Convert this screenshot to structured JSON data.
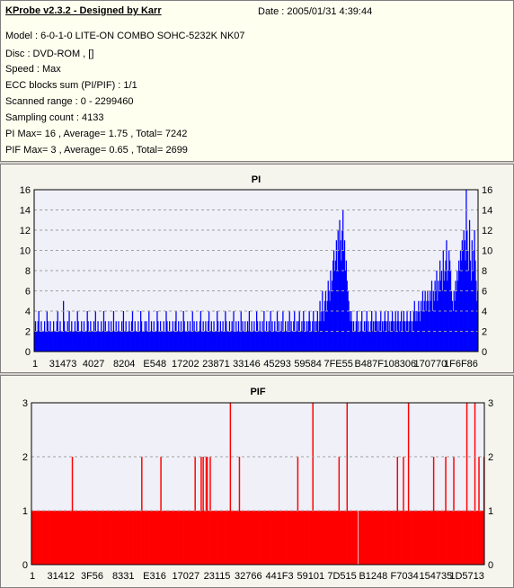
{
  "header": {
    "title": "KProbe v2.3.2 - Designed by Karr",
    "date": "Date : 2005/01/31 4:39:44"
  },
  "info_lines": [
    "Model : 6-0-1-0 LITE-ON COMBO SOHC-5232K NK07",
    "Disc : DVD-ROM ,  []",
    "Speed : Max",
    "ECC blocks sum (PI/PIF) : 1/1",
    "Scanned range : 0 - 2299460",
    "Sampling count : 4133",
    "PI Max= 16 , Average= 1.75 , Total= 7242",
    "PIF Max= 3 , Average= 0.65 , Total= 2699"
  ],
  "colors": {
    "pi": "#0000ff",
    "pif": "#ff0000",
    "grid": "#a0a0a0",
    "plot_bg": "#f0f0f8"
  },
  "chart_data": [
    {
      "type": "bar",
      "title": "PI",
      "ylim": [
        0,
        16
      ],
      "yticks": [
        0,
        2,
        4,
        6,
        8,
        10,
        12,
        14,
        16
      ],
      "xtick_labels": [
        "1",
        "31473",
        "4027",
        "8204",
        "E548",
        "17202",
        "23871",
        "33146",
        "45293",
        "59584",
        "7FE55",
        "B487F",
        "108306",
        "170770",
        "1F6F86"
      ],
      "grid": true,
      "series": [
        {
          "values": [
            2,
            3,
            2,
            2,
            3,
            4,
            2,
            2,
            3,
            2,
            2,
            2,
            3,
            2,
            2,
            4,
            3,
            2,
            2,
            3,
            2,
            2,
            2,
            3,
            2,
            2,
            2,
            3,
            4,
            2,
            2,
            3,
            2,
            2,
            2,
            5,
            3,
            2,
            2,
            2,
            3,
            2,
            4,
            2,
            2,
            3,
            2,
            2,
            2,
            3,
            2,
            2,
            4,
            3,
            2,
            2,
            2,
            3,
            2,
            2,
            3,
            2,
            2,
            2,
            4,
            3,
            2,
            2,
            3,
            2,
            2,
            2,
            3,
            2,
            4,
            2,
            2,
            3,
            2,
            2,
            2,
            3,
            2,
            2,
            4,
            2,
            3,
            2,
            2,
            2,
            3,
            2,
            2,
            3,
            2,
            2,
            4,
            2,
            2,
            3,
            2,
            2,
            3,
            2,
            2,
            2,
            3,
            2,
            4,
            2,
            2,
            3,
            2,
            2,
            2,
            3,
            2,
            2,
            3,
            4,
            2,
            2,
            3,
            2,
            2,
            2,
            3,
            2,
            2,
            4,
            3,
            2,
            2,
            2,
            3,
            2,
            3,
            2,
            2,
            4,
            2,
            2,
            3,
            2,
            2,
            3,
            2,
            2,
            2,
            4,
            3,
            2,
            2,
            3,
            2,
            2,
            2,
            3,
            2,
            2,
            4,
            3,
            2,
            2,
            3,
            2,
            2,
            2,
            3,
            2,
            2,
            3,
            4,
            2,
            2,
            3,
            2,
            2,
            3,
            2,
            2,
            4,
            3,
            2,
            2,
            2,
            3,
            2,
            2,
            3,
            2,
            2,
            4,
            2,
            3,
            2,
            2,
            3,
            2,
            2,
            2,
            3,
            4,
            2,
            2,
            3,
            2,
            2,
            3,
            2,
            2,
            3,
            4,
            2,
            2,
            3,
            2,
            2,
            3,
            2,
            2,
            2,
            4,
            3,
            2,
            2,
            3,
            2,
            2,
            3,
            2,
            2,
            4,
            3,
            2,
            2,
            2,
            3,
            2,
            2,
            3,
            2,
            4,
            2,
            2,
            3,
            2,
            2,
            3,
            2,
            2,
            4,
            2,
            3,
            2,
            2,
            3,
            2,
            2,
            3,
            2,
            4,
            2,
            2,
            3,
            2,
            2,
            3,
            2,
            2,
            4,
            3,
            2,
            2,
            3,
            2,
            2,
            3,
            2,
            4,
            2,
            2,
            3,
            2,
            2,
            3,
            2,
            4,
            2,
            3,
            2,
            2,
            3,
            2,
            2,
            4,
            2,
            3,
            2,
            2,
            3,
            2,
            4,
            2,
            2,
            3,
            2,
            2,
            3,
            2,
            4,
            2,
            3,
            2,
            2,
            3,
            4,
            2,
            2,
            3,
            2,
            3,
            4,
            2,
            2,
            3,
            2,
            4,
            3,
            2,
            2,
            3,
            2,
            3,
            4,
            3,
            2,
            2,
            3,
            4,
            2,
            3,
            2,
            3,
            4,
            2,
            3,
            5,
            3,
            4,
            6,
            4,
            3,
            5,
            6,
            4,
            5,
            7,
            6,
            5,
            8,
            6,
            7,
            9,
            10,
            8,
            9,
            11,
            8,
            12,
            10,
            13,
            11,
            9,
            12,
            14,
            10,
            11,
            8,
            9,
            7,
            6,
            5,
            4,
            3,
            4,
            3,
            2,
            3,
            2,
            2,
            3,
            4,
            2,
            3,
            2,
            2,
            3,
            4,
            2,
            2,
            3,
            2,
            3,
            4,
            2,
            3,
            2,
            2,
            3,
            4,
            2,
            3,
            2,
            3,
            4,
            3,
            2,
            3,
            2,
            3,
            4,
            2,
            3,
            2,
            3,
            4,
            3,
            2,
            3,
            4,
            2,
            3,
            2,
            3,
            4,
            3,
            2,
            3,
            4,
            2,
            3,
            4,
            3,
            2,
            3,
            4,
            2,
            3,
            4,
            3,
            2,
            3,
            4,
            3,
            2,
            3,
            4,
            3,
            2,
            3,
            4,
            5,
            3,
            4,
            3,
            4,
            5,
            4,
            3,
            5,
            4,
            6,
            4,
            5,
            6,
            4,
            5,
            6,
            5,
            4,
            6,
            5,
            7,
            4,
            6,
            5,
            7,
            6,
            8,
            5,
            7,
            6,
            9,
            7,
            8,
            6,
            10,
            7,
            8,
            9,
            11,
            7,
            8,
            10,
            9,
            8,
            6,
            5,
            4,
            6,
            5,
            7,
            6,
            8,
            7,
            9,
            8,
            10,
            9,
            11,
            10,
            12,
            11,
            9,
            16,
            12,
            10,
            8,
            13,
            9,
            7,
            11,
            8,
            10,
            12,
            9,
            7,
            5,
            6
          ]
        }
      ]
    },
    {
      "type": "bar",
      "title": "PIF",
      "ylim": [
        0,
        3
      ],
      "yticks": [
        0,
        1,
        2,
        3
      ],
      "xtick_labels": [
        "1",
        "31412",
        "3F56",
        "8331",
        "E316",
        "17027",
        "23115",
        "32766",
        "441F3",
        "59101",
        "7D515",
        "B1248",
        "F7034",
        "154735",
        "1D5713"
      ],
      "grid": true,
      "series": [
        {
          "values": [
            1,
            1,
            1,
            1,
            1,
            1,
            1,
            1,
            1,
            1,
            1,
            1,
            1,
            1,
            1,
            1,
            1,
            1,
            1,
            1,
            1,
            1,
            1,
            1,
            1,
            1,
            1,
            1,
            1,
            1,
            1,
            1,
            1,
            1,
            1,
            1,
            1,
            1,
            1,
            1,
            2,
            1,
            1,
            1,
            1,
            1,
            1,
            1,
            1,
            1,
            1,
            1,
            1,
            1,
            1,
            1,
            1,
            1,
            1,
            1,
            1,
            1,
            1,
            1,
            1,
            1,
            1,
            1,
            1,
            1,
            1,
            1,
            1,
            1,
            1,
            1,
            1,
            1,
            1,
            1,
            1,
            1,
            1,
            1,
            1,
            1,
            1,
            1,
            1,
            1,
            1,
            1,
            1,
            1,
            1,
            1,
            1,
            1,
            1,
            1,
            1,
            1,
            1,
            1,
            1,
            1,
            1,
            1,
            1,
            2,
            1,
            1,
            1,
            1,
            1,
            1,
            1,
            1,
            1,
            1,
            1,
            1,
            1,
            1,
            1,
            1,
            1,
            1,
            2,
            1,
            1,
            1,
            1,
            1,
            1,
            1,
            1,
            1,
            1,
            1,
            1,
            1,
            1,
            1,
            1,
            1,
            1,
            1,
            1,
            1,
            1,
            1,
            1,
            1,
            1,
            1,
            1,
            1,
            1,
            1,
            1,
            1,
            2,
            1,
            1,
            1,
            1,
            1,
            2,
            1,
            2,
            1,
            1,
            2,
            2,
            1,
            1,
            2,
            1,
            1,
            1,
            1,
            1,
            1,
            1,
            1,
            1,
            1,
            1,
            1,
            1,
            1,
            1,
            1,
            1,
            1,
            1,
            3,
            1,
            1,
            1,
            1,
            1,
            1,
            1,
            1,
            2,
            1,
            1,
            1,
            1,
            1,
            1,
            1,
            1,
            1,
            1,
            1,
            1,
            1,
            1,
            1,
            1,
            1,
            1,
            1,
            1,
            1,
            1,
            1,
            1,
            1,
            1,
            1,
            1,
            1,
            1,
            1,
            1,
            1,
            1,
            1,
            1,
            1,
            1,
            1,
            1,
            1,
            1,
            1,
            1,
            1,
            1,
            1,
            1,
            1,
            1,
            1,
            1,
            1,
            1,
            1,
            1,
            1,
            2,
            1,
            1,
            1,
            1,
            1,
            1,
            1,
            1,
            1,
            1,
            1,
            1,
            1,
            1,
            3,
            1,
            1,
            1,
            1,
            1,
            1,
            1,
            1,
            1,
            1,
            1,
            1,
            1,
            1,
            1,
            1,
            1,
            1,
            1,
            1,
            1,
            1,
            1,
            1,
            1,
            2,
            1,
            1,
            1,
            1,
            1,
            1,
            1,
            3,
            1,
            1,
            1,
            1,
            1,
            1,
            1,
            1,
            1,
            1,
            0,
            1,
            1,
            1,
            1,
            1,
            1,
            1,
            1,
            1,
            1,
            1,
            1,
            1,
            1,
            1,
            1,
            1,
            1,
            1,
            1,
            1,
            1,
            1,
            1,
            1,
            1,
            1,
            1,
            1,
            1,
            1,
            1,
            1,
            1,
            1,
            1,
            1,
            1,
            2,
            1,
            1,
            1,
            1,
            1,
            2,
            1,
            1,
            1,
            1,
            3,
            1,
            1,
            1,
            1,
            1,
            1,
            1,
            1,
            1,
            1,
            1,
            1,
            1,
            1,
            1,
            1,
            1,
            1,
            1,
            1,
            1,
            1,
            1,
            1,
            2,
            1,
            1,
            1,
            1,
            1,
            1,
            1,
            1,
            1,
            1,
            1,
            2,
            1,
            1,
            1,
            1,
            1,
            1,
            1,
            2,
            1,
            1,
            1,
            1,
            1,
            1,
            1,
            1,
            1,
            1,
            1,
            1,
            3,
            1,
            1,
            1,
            1,
            1,
            1,
            1,
            3,
            1,
            1,
            1,
            2,
            1,
            1,
            1,
            1,
            2
          ]
        }
      ]
    }
  ]
}
